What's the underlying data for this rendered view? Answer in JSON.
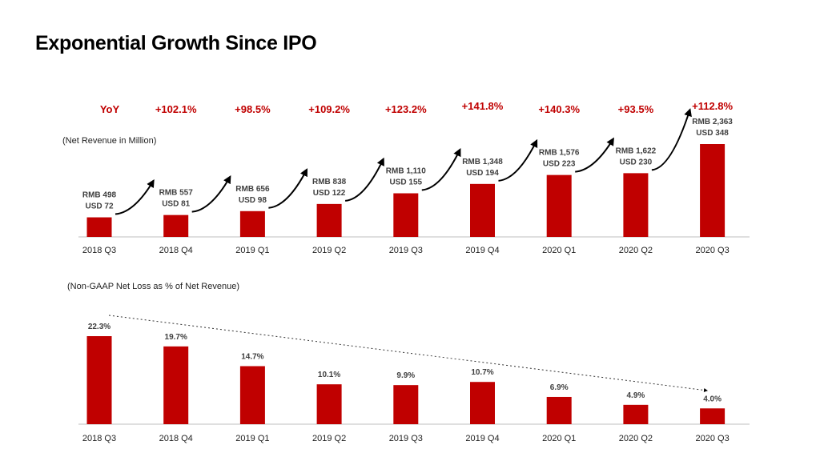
{
  "page": {
    "title": "Exponential Growth Since IPO"
  },
  "colors": {
    "bar": "#c00000",
    "yoy_text": "#c00000",
    "axis": "#bfbfbf"
  },
  "yoy_label": "YoY",
  "chart_data": [
    {
      "type": "bar",
      "title": "",
      "ylabel": "(Net Revenue in Million)",
      "categories": [
        "2018 Q3",
        "2018 Q4",
        "2019 Q1",
        "2019 Q2",
        "2019 Q3",
        "2019 Q4",
        "2020 Q1",
        "2020 Q2",
        "2020 Q3"
      ],
      "series": [
        {
          "values": [
            498,
            557,
            656,
            838,
            1110,
            1348,
            1576,
            1622,
            2363
          ]
        }
      ],
      "data_labels": [
        {
          "rmb": "RMB 498",
          "usd": "USD 72"
        },
        {
          "rmb": "RMB 557",
          "usd": "USD 81"
        },
        {
          "rmb": "RMB 656",
          "usd": "USD 98"
        },
        {
          "rmb": "RMB 838",
          "usd": "USD 122"
        },
        {
          "rmb": "RMB 1,110",
          "usd": "USD 155"
        },
        {
          "rmb": "RMB 1,348",
          "usd": "USD 194"
        },
        {
          "rmb": "RMB 1,576",
          "usd": "USD 223"
        },
        {
          "rmb": "RMB 1,622",
          "usd": "USD 230"
        },
        {
          "rmb": "RMB 2,363",
          "usd": "USD 348"
        }
      ],
      "yoy": [
        "+102.1%",
        "+98.5%",
        "+109.2%",
        "+123.2%",
        "+141.8%",
        "+140.3%",
        "+93.5%",
        "+112.8%"
      ],
      "ylim": [
        0,
        2363
      ],
      "grid": false
    },
    {
      "type": "bar",
      "title": "",
      "ylabel": "(Non-GAAP Net Loss as % of Net Revenue)",
      "categories": [
        "2018 Q3",
        "2018 Q4",
        "2019 Q1",
        "2019 Q2",
        "2019 Q3",
        "2019 Q4",
        "2020 Q1",
        "2020 Q2",
        "2020 Q3"
      ],
      "series": [
        {
          "values": [
            22.3,
            19.7,
            14.7,
            10.1,
            9.9,
            10.7,
            6.9,
            4.9,
            4.0
          ]
        }
      ],
      "data_labels": [
        "22.3%",
        "19.7%",
        "14.7%",
        "10.1%",
        "9.9%",
        "10.7%",
        "6.9%",
        "4.9%",
        "4.0%"
      ],
      "trend_arrow": "dashed",
      "ylim": [
        0,
        22.3
      ],
      "grid": false
    }
  ]
}
